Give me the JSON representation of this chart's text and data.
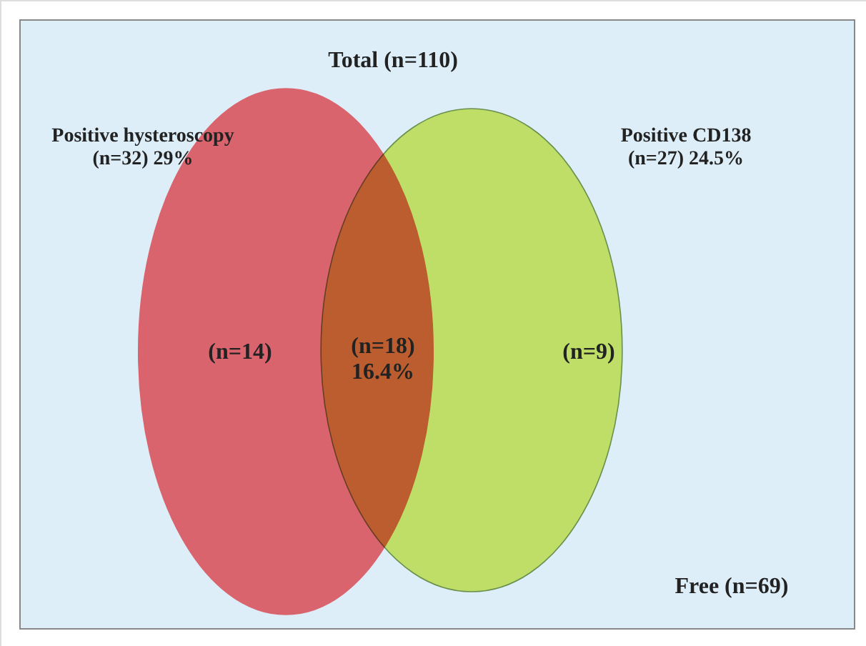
{
  "chart_data": {
    "type": "other",
    "title": "Total (n=110)",
    "categories": [
      "Positive hysteroscopy",
      "Positive CD138"
    ],
    "values": [
      32,
      27
    ],
    "value_labels": [
      "(n=32) 29%",
      "(n=27) 24.5%"
    ],
    "colors": [
      "#d9646e",
      "#dcee6a"
    ],
    "annotations": [
      "(n=14)",
      "(n=18)\n16.4%",
      "(n=9)",
      "Free (n=69)"
    ]
  }
}
